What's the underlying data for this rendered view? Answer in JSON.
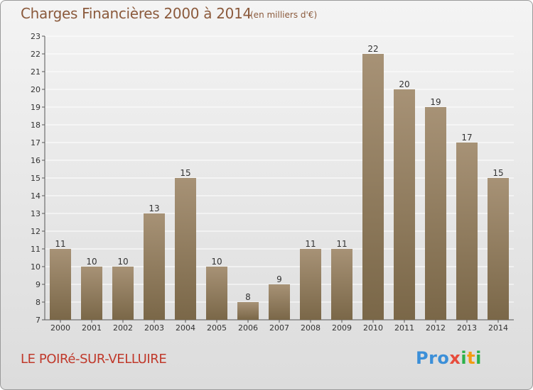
{
  "header": {
    "title": "Charges Financières 2000 à 2014",
    "subtitle": "(en milliers d'€)"
  },
  "footer": {
    "commune": "LE POIRé-SUR-VELLUIRE",
    "logo": [
      "Pro",
      "x",
      "i",
      "t",
      "i"
    ]
  },
  "colors": {
    "bar_top": "#a79276",
    "bar_bottom": "#7a6748",
    "grid": "#ffffff",
    "title": "#8b5a3c",
    "commune": "#c0392b"
  },
  "chart_data": {
    "type": "bar",
    "title": "Charges Financières 2000 à 2014",
    "subtitle": "(en milliers d'€)",
    "categories": [
      "2000",
      "2001",
      "2002",
      "2003",
      "2004",
      "2005",
      "2006",
      "2007",
      "2008",
      "2009",
      "2010",
      "2011",
      "2012",
      "2013",
      "2014"
    ],
    "values": [
      11,
      10,
      10,
      13,
      15,
      10,
      8,
      9,
      11,
      11,
      22,
      20,
      19,
      17,
      15
    ],
    "ylim": [
      7,
      23
    ],
    "yticks": [
      7,
      8,
      9,
      10,
      11,
      12,
      13,
      14,
      15,
      16,
      17,
      18,
      19,
      20,
      21,
      22,
      23
    ],
    "grid": true,
    "data_labels": true
  }
}
